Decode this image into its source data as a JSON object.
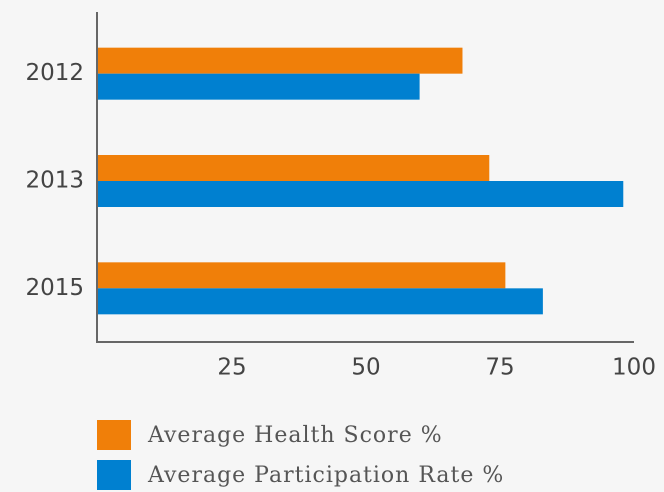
{
  "chart_data": {
    "type": "barh",
    "categories": [
      "2012",
      "2013",
      "2015"
    ],
    "series": [
      {
        "name": "Average Health Score %",
        "color": "#f07f09",
        "values": [
          68,
          73,
          76
        ]
      },
      {
        "name": "Average Participation Rate %",
        "color": "#0080d0",
        "values": [
          60,
          98,
          83
        ]
      }
    ],
    "xlim": [
      0,
      100
    ],
    "xticks": [
      25,
      50,
      75,
      100
    ],
    "grid": false,
    "legend": "bottom"
  }
}
